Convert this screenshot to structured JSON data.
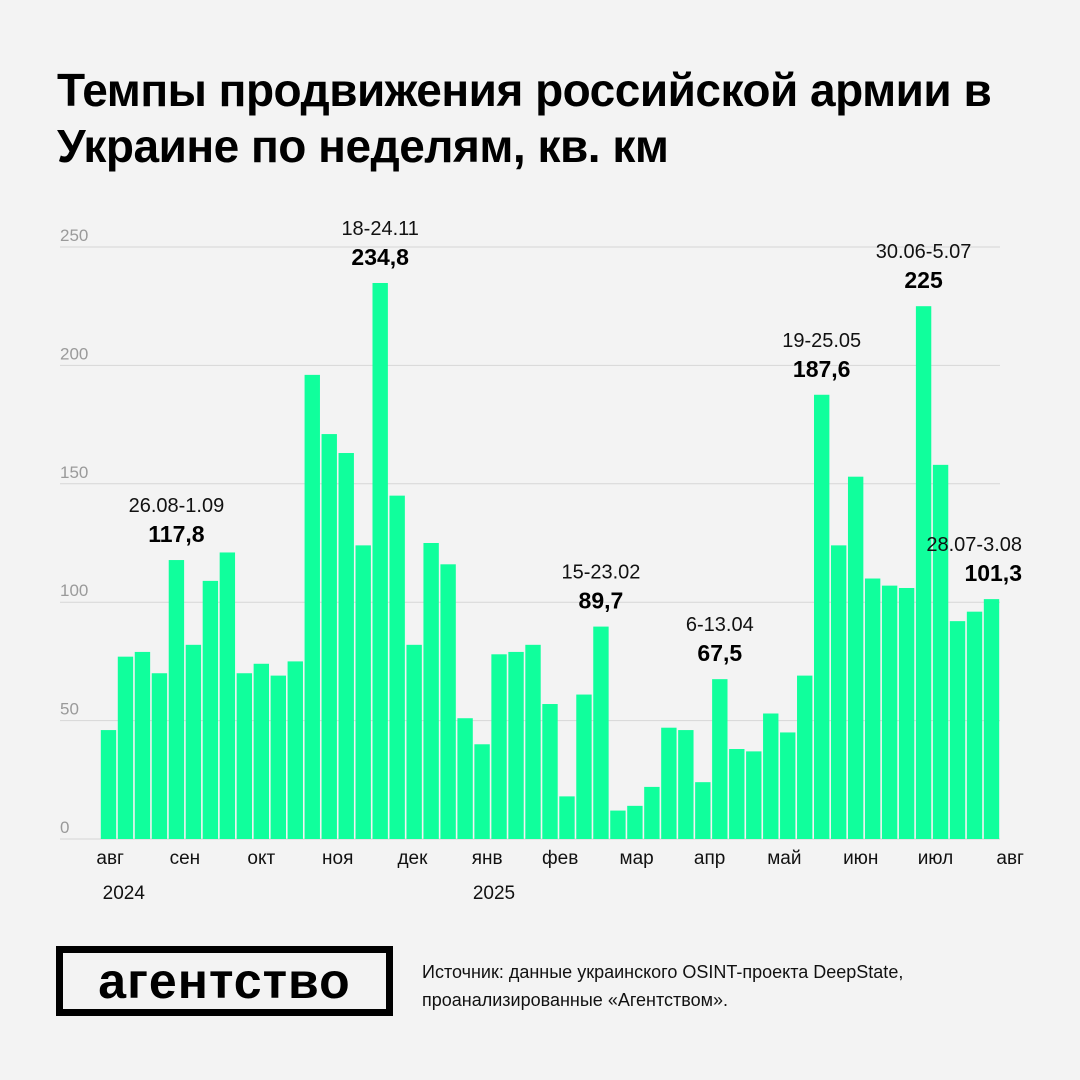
{
  "title": "Темпы продвижения российской армии в Украине по неделям, кв. км",
  "source": "Источник: данные украинского OSINT-проекта DeepState, проанализированные «Агентством».",
  "logo_text": "агентство",
  "colors": {
    "bar": "#10ff9c",
    "grid": "#d6d6d6",
    "tick": "#9a9a9a",
    "text": "#000000",
    "background": "#f3f3f3"
  },
  "chart_data": {
    "type": "bar",
    "ylim": [
      0,
      250
    ],
    "yticks": [
      0,
      50,
      100,
      150,
      200,
      250
    ],
    "grid": true,
    "values": [
      46,
      77,
      79,
      70,
      117.8,
      82,
      109,
      121,
      70,
      74,
      69,
      75,
      196,
      171,
      163,
      124,
      234.8,
      145,
      82,
      125,
      116,
      51,
      40,
      78,
      79,
      82,
      57,
      18,
      61,
      89.7,
      12,
      14,
      22,
      47,
      46,
      24,
      67.5,
      38,
      37,
      53,
      45,
      69,
      187.6,
      124,
      153,
      110,
      107,
      106,
      225,
      158,
      92,
      96,
      101.3
    ],
    "month_labels": [
      {
        "label": "авг",
        "index": 0.6
      },
      {
        "label": "сен",
        "index": 5.0
      },
      {
        "label": "окт",
        "index": 9.5
      },
      {
        "label": "ноя",
        "index": 14.0
      },
      {
        "label": "дек",
        "index": 18.4
      },
      {
        "label": "янв",
        "index": 22.8
      },
      {
        "label": "фев",
        "index": 27.1
      },
      {
        "label": "мар",
        "index": 31.6
      },
      {
        "label": "апр",
        "index": 35.9
      },
      {
        "label": "май",
        "index": 40.3
      },
      {
        "label": "июн",
        "index": 44.8
      },
      {
        "label": "июл",
        "index": 49.2
      },
      {
        "label": "авг",
        "index": 53.6
      }
    ],
    "year_labels": [
      {
        "label": "2024",
        "index": 1.4
      },
      {
        "label": "2025",
        "index": 23.2
      }
    ],
    "annotations": [
      {
        "index": 4,
        "period": "26.08-1.09",
        "value": "117,8"
      },
      {
        "index": 16,
        "period": "18-24.11",
        "value": "234,8"
      },
      {
        "index": 29,
        "period": "15-23.02",
        "value": "89,7"
      },
      {
        "index": 36,
        "period": "6-13.04",
        "value": "67,5"
      },
      {
        "index": 42,
        "period": "19-25.05",
        "value": "187,6"
      },
      {
        "index": 48,
        "period": "30.06-5.07",
        "value": "225"
      },
      {
        "index": 52,
        "period": "28.07-3.08",
        "value": "101,3"
      }
    ]
  }
}
